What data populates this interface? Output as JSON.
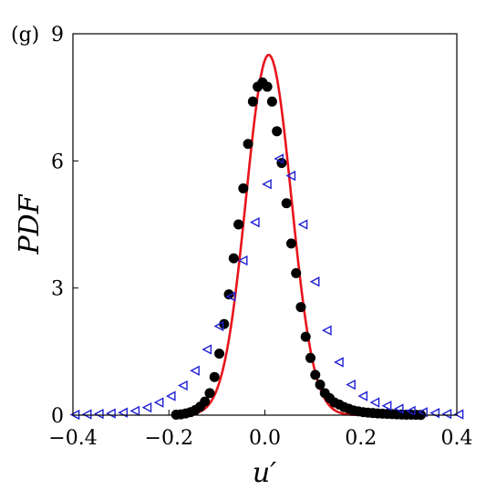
{
  "panel_label": "(g)",
  "chart_data": {
    "type": "scatter",
    "xlabel": "u′",
    "ylabel": "PDF",
    "xlim": [
      -0.4,
      0.4
    ],
    "ylim": [
      0,
      9
    ],
    "xticks": [
      -0.4,
      -0.2,
      0.0,
      0.2,
      0.4
    ],
    "xtick_labels": [
      "−0.4",
      "−0.2",
      "0.0",
      "0.2",
      "0.4"
    ],
    "yticks": [
      0,
      3,
      6,
      9
    ],
    "ytick_labels": [
      "0",
      "3",
      "6",
      "9"
    ],
    "grid": false,
    "colors": {
      "line": "#e8141c",
      "circles": "#000000",
      "triangles": "#1f1fd6"
    },
    "series": [
      {
        "kind": "line",
        "marker": "none",
        "curve": {
          "form": "gaussian",
          "mean": 0.008,
          "std": 0.047,
          "peak": 8.5,
          "x_start": -0.17,
          "x_end": 0.19
        }
      },
      {
        "kind": "scatter",
        "marker": "filled-circle",
        "x": [
          -0.185,
          -0.175,
          -0.165,
          -0.155,
          -0.145,
          -0.135,
          -0.125,
          -0.115,
          -0.105,
          -0.095,
          -0.085,
          -0.075,
          -0.065,
          -0.055,
          -0.045,
          -0.035,
          -0.025,
          -0.015,
          -0.005,
          0.005,
          0.015,
          0.025,
          0.035,
          0.045,
          0.055,
          0.065,
          0.075,
          0.085,
          0.095,
          0.105,
          0.115,
          0.125,
          0.135,
          0.145,
          0.155,
          0.165,
          0.175,
          0.185,
          0.195,
          0.205,
          0.215,
          0.225,
          0.235,
          0.245,
          0.255,
          0.265,
          0.275,
          0.285,
          0.295,
          0.305,
          0.315,
          0.325
        ],
        "y": [
          0.01,
          0.02,
          0.04,
          0.07,
          0.12,
          0.2,
          0.32,
          0.52,
          0.9,
          1.45,
          2.15,
          2.85,
          3.7,
          4.5,
          5.35,
          6.4,
          7.4,
          7.75,
          7.85,
          7.75,
          7.4,
          6.7,
          5.95,
          5.0,
          4.05,
          3.35,
          2.55,
          1.85,
          1.35,
          0.95,
          0.72,
          0.52,
          0.4,
          0.3,
          0.25,
          0.19,
          0.15,
          0.11,
          0.09,
          0.07,
          0.06,
          0.05,
          0.04,
          0.035,
          0.03,
          0.025,
          0.02,
          0.015,
          0.012,
          0.01,
          0.008,
          0.006
        ]
      },
      {
        "kind": "scatter",
        "marker": "open-left-triangle",
        "x": [
          -0.395,
          -0.37,
          -0.345,
          -0.32,
          -0.295,
          -0.27,
          -0.245,
          -0.22,
          -0.195,
          -0.17,
          -0.145,
          -0.12,
          -0.095,
          -0.07,
          -0.045,
          -0.02,
          0.005,
          0.03,
          0.055,
          0.08,
          0.105,
          0.13,
          0.155,
          0.18,
          0.205,
          0.23,
          0.255,
          0.28,
          0.305,
          0.33,
          0.355,
          0.38,
          0.405
        ],
        "y": [
          0.01,
          0.02,
          0.03,
          0.04,
          0.06,
          0.1,
          0.18,
          0.3,
          0.45,
          0.7,
          1.05,
          1.55,
          2.1,
          2.8,
          3.65,
          4.55,
          5.45,
          6.05,
          5.65,
          4.5,
          3.15,
          2.0,
          1.25,
          0.72,
          0.45,
          0.3,
          0.22,
          0.15,
          0.1,
          0.07,
          0.05,
          0.03,
          0.02
        ]
      }
    ]
  }
}
